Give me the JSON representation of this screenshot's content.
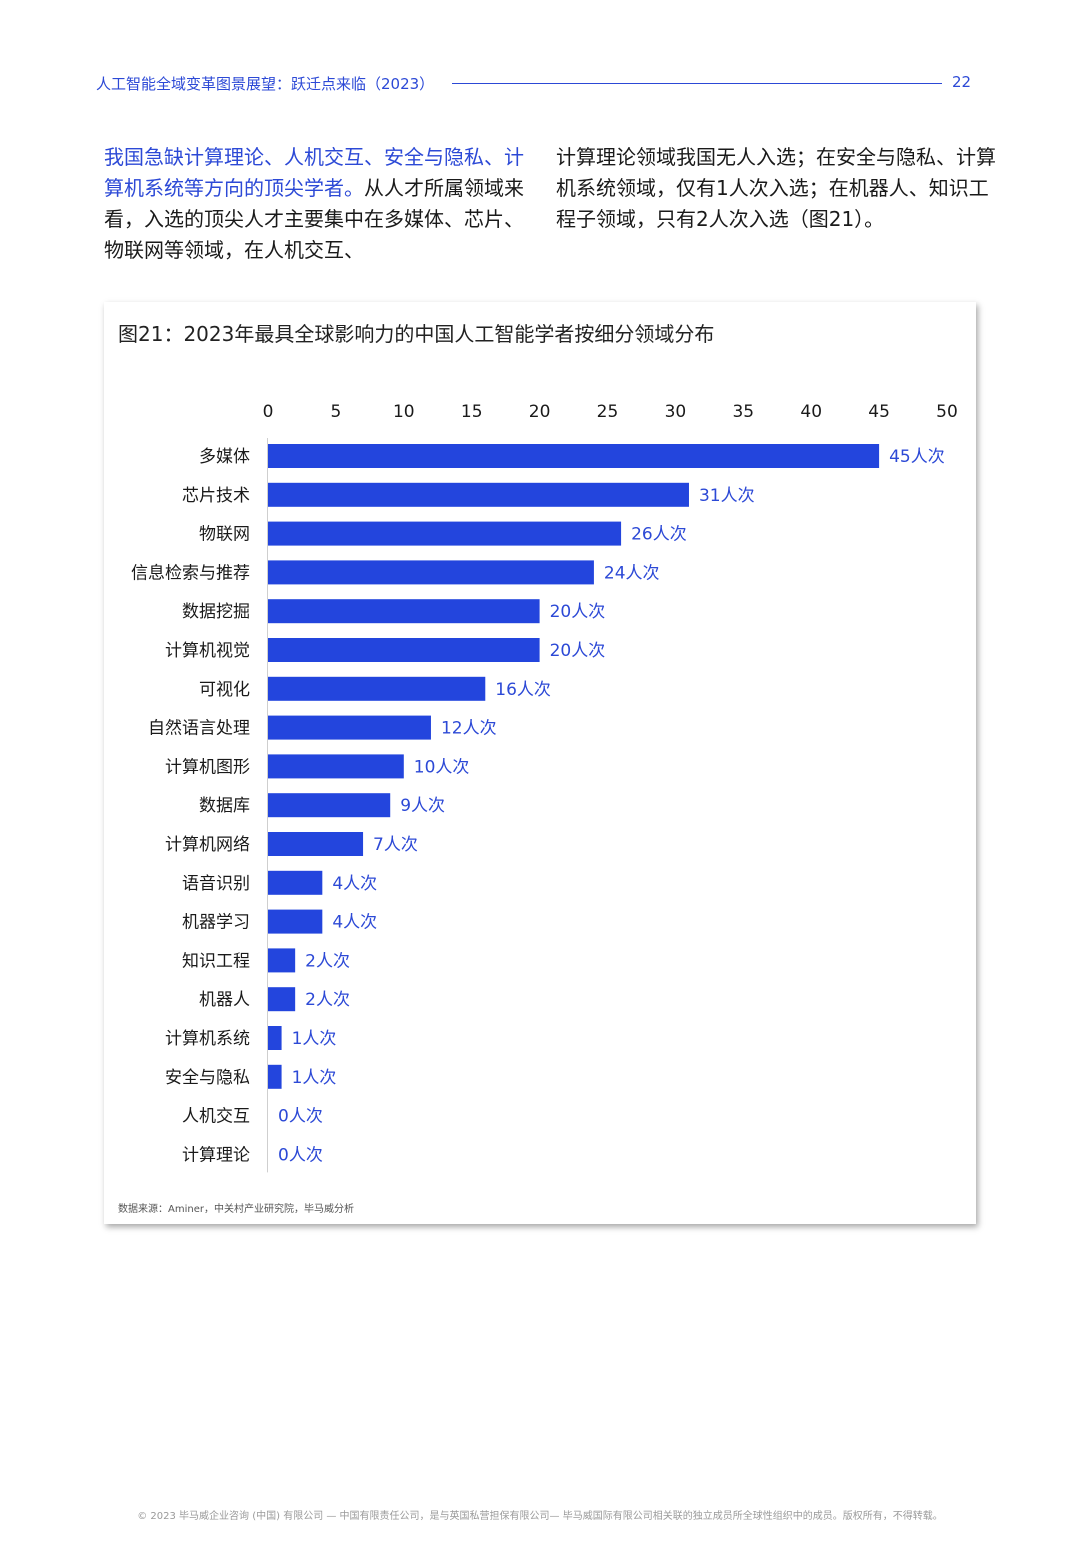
{
  "header": {
    "title": "人工智能全域变革图景展望：跃迁点来临（2023）",
    "page_number": "22"
  },
  "body": {
    "left_highlight": "我国急缺计算理论、人机交互、安全与隐私、计算机系统等方向的顶尖学者。",
    "left_text": "从人才所属领域来看，入选的顶尖人才主要集中在多媒体、芯片、物联网等领域，在人机交互、",
    "right_text": "计算理论领域我国无人入选；在安全与隐私、计算机系统领域，仅有1人次入选；在机器人、知识工程子领域，只有2人次入选（图21）。"
  },
  "figure": {
    "source": "数据来源：Aminer，中关村产业研究院，毕马威分析"
  },
  "chart_data": {
    "type": "bar",
    "orientation": "horizontal",
    "title": "图21：2023年最具全球影响力的中国人工智能学者按细分领域分布",
    "xlabel": "",
    "ylabel": "",
    "xlim": [
      0,
      50
    ],
    "x_ticks": [
      "0",
      "5",
      "10",
      "15",
      "20",
      "25",
      "30",
      "35",
      "40",
      "45",
      "50"
    ],
    "x_axis_position": "top",
    "grid": false,
    "bar_color": "#2345dd",
    "label_color": "#2c49d6",
    "categories": [
      "多媒体",
      "芯片技术",
      "物联网",
      "信息检索与推荐",
      "数据挖掘",
      "计算机视觉",
      "可视化",
      "自然语言处理",
      "计算机图形",
      "数据库",
      "计算机网络",
      "语音识别",
      "机器学习",
      "知识工程",
      "机器人",
      "计算机系统",
      "安全与隐私",
      "人机交互",
      "计算理论"
    ],
    "values": [
      45,
      31,
      26,
      24,
      20,
      20,
      16,
      12,
      10,
      9,
      7,
      4,
      4,
      2,
      2,
      1,
      1,
      0,
      0
    ],
    "data_labels": [
      "45人次",
      "31人次",
      "26人次",
      "24人次",
      "20人次",
      "20人次",
      "16人次",
      "12人次",
      "10人次",
      "9人次",
      "7人次",
      "4人次",
      "4人次",
      "2人次",
      "2人次",
      "1人次",
      "1人次",
      "0人次",
      "0人次"
    ]
  },
  "footer": {
    "text": "© 2023 毕马威企业咨询 (中国) 有限公司 — 中国有限责任公司，是与英国私营担保有限公司— 毕马威国际有限公司相关联的独立成员所全球性组织中的成员。版权所有，不得转载。"
  }
}
